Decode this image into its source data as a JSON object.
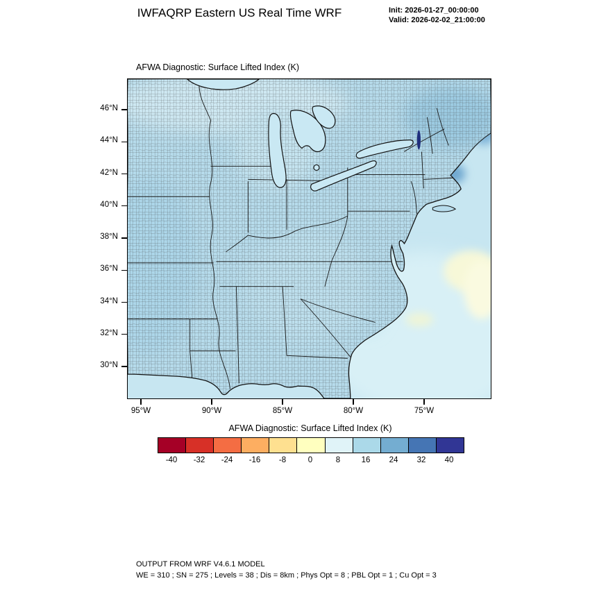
{
  "header": {
    "title": "IWFAQRP Eastern US Real Time WRF",
    "init_label": "Init: 2026-01-27_00:00:00",
    "valid_label": "Valid: 2026-02-02_21:00:00"
  },
  "plot": {
    "title": "AFWA Diagnostic: Surface Lifted Index   (K)",
    "y_ticks": [
      "46°N",
      "44°N",
      "42°N",
      "40°N",
      "38°N",
      "36°N",
      "34°N",
      "32°N",
      "30°N"
    ],
    "x_ticks": [
      "95°W",
      "90°W",
      "85°W",
      "80°W",
      "75°W"
    ]
  },
  "colorbar": {
    "label": "AFWA Diagnostic: Surface Lifted Index  (K)",
    "tick_labels": [
      "-40",
      "-32",
      "-24",
      "-16",
      "-8",
      "0",
      "8",
      "16",
      "24",
      "32",
      "40"
    ],
    "colors": [
      "#a50026",
      "#d73027",
      "#f46d43",
      "#fdae61",
      "#fee090",
      "#ffffbf",
      "#e0f3f8",
      "#abd9e9",
      "#74add1",
      "#4575b4",
      "#313695"
    ]
  },
  "footer": {
    "line1": "OUTPUT FROM WRF V4.6.1 MODEL",
    "line2": "WE = 310 ; SN = 275 ; Levels = 38 ; Dis = 8km ; Phys Opt = 8 ; PBL Opt = 1 ; Cu Opt = 3"
  },
  "chart_data": {
    "type": "heatmap",
    "subtype": "filled-contour-map",
    "title": "AFWA Diagnostic: Surface Lifted Index (K)",
    "variable": "Surface Lifted Index",
    "units": "K",
    "projection": "Lambert conformal over the eastern United States with county outlines",
    "x": {
      "label": "longitude",
      "tick_labels": [
        "95°W",
        "90°W",
        "85°W",
        "80°W",
        "75°W"
      ]
    },
    "y": {
      "label": "latitude",
      "tick_labels": [
        "46°N",
        "44°N",
        "42°N",
        "40°N",
        "38°N",
        "36°N",
        "34°N",
        "32°N",
        "30°N"
      ]
    },
    "levels": [
      -40,
      -32,
      -24,
      -16,
      -8,
      0,
      8,
      16,
      24,
      32,
      40
    ],
    "palette": [
      "#a50026",
      "#d73027",
      "#f46d43",
      "#fdae61",
      "#fee090",
      "#ffffbf",
      "#e0f3f8",
      "#abd9e9",
      "#74add1",
      "#4575b4",
      "#313695"
    ],
    "legend_position": "bottom",
    "grid": false,
    "field_summary": [
      {
        "region": "most of the land area (eastern US)",
        "approx_value_K": "10 to 24 (uniform light blue)"
      },
      {
        "region": "offshore Atlantic, southeast quadrant",
        "approx_value_K": "4 to 12 (pale cyan)"
      },
      {
        "region": "isolated pockets off the mid-Atlantic coast",
        "approx_value_K": "0 to 8 (pale yellow)"
      },
      {
        "region": "far northeast (Maine / Gulf of Maine)",
        "approx_value_K": "24 to 32 (darker blue patches)"
      },
      {
        "region": "Lake Champlain sliver",
        "approx_value_K": "32 to 40 (navy)"
      }
    ]
  }
}
